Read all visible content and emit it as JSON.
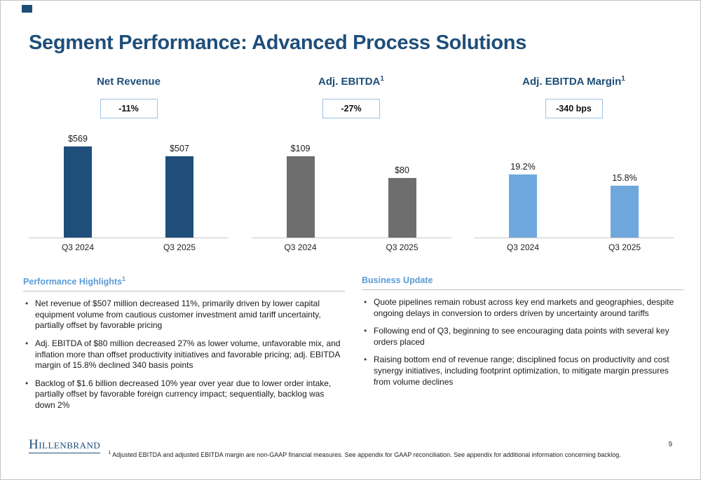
{
  "slide": {
    "title": "Segment Performance: Advanced Process Solutions",
    "page_number": "9",
    "footnote_sup": "1",
    "footnote": "Adjusted EBITDA and adjusted EBITDA margin are non-GAAP financial measures.  See appendix for GAAP reconciliation. See appendix for additional information concerning backlog.",
    "logo_text": "Hillenbrand"
  },
  "colors": {
    "navy": "#1F4E79",
    "gray_bar": "#6E6E6E",
    "light_blue_bar": "#6FA8DC",
    "section_heading_blue": "#5B9BD5",
    "badge_border": "#9DC3E6"
  },
  "chart_data": [
    {
      "type": "bar",
      "title": "Net Revenue",
      "title_sup": "",
      "badge": "-11%",
      "categories": [
        "Q3 2024",
        "Q3 2025"
      ],
      "values": [
        569,
        507
      ],
      "labels": [
        "$569",
        "$507"
      ],
      "color": "#1F4E79",
      "ylim": [
        0,
        640
      ],
      "legend": "none",
      "grid": "off"
    },
    {
      "type": "bar",
      "title": "Adj. EBITDA",
      "title_sup": "1",
      "badge": "-27%",
      "categories": [
        "Q3 2024",
        "Q3 2025"
      ],
      "values": [
        109,
        80
      ],
      "labels": [
        "$109",
        "$80"
      ],
      "color": "#6E6E6E",
      "ylim": [
        0,
        137
      ],
      "legend": "none",
      "grid": "off"
    },
    {
      "type": "bar",
      "title": "Adj. EBITDA Margin",
      "title_sup": "1",
      "badge": "-340 bps",
      "categories": [
        "Q3 2024",
        "Q3 2025"
      ],
      "values": [
        19.2,
        15.8
      ],
      "labels": [
        "19.2%",
        "15.8%"
      ],
      "color": "#6FA8DC",
      "ylim": [
        0,
        31
      ],
      "legend": "none",
      "grid": "off"
    }
  ],
  "highlights": {
    "heading": "Performance Highlights",
    "heading_sup": "1",
    "bullets": [
      "Net revenue of $507 million decreased 11%, primarily driven by lower capital equipment volume from cautious customer investment amid tariff uncertainty, partially offset by favorable pricing",
      "Adj. EBITDA of $80 million decreased 27% as lower volume, unfavorable mix, and inflation more than offset productivity initiatives and favorable pricing; adj. EBITDA margin of 15.8% declined 340 basis points",
      "Backlog of $1.6 billion decreased 10% year over year due to lower order intake, partially offset by favorable foreign currency impact; sequentially, backlog was down 2%"
    ]
  },
  "business": {
    "heading": "Business Update",
    "bullets": [
      "Quote pipelines remain robust across key end markets and geographies, despite ongoing delays in conversion to orders driven by uncertainty around tariffs",
      "Following end of Q3, beginning to see encouraging data points with several key orders placed",
      "Raising bottom end of revenue range; disciplined focus on productivity and cost synergy initiatives, including footprint optimization, to mitigate margin pressures from volume declines"
    ]
  }
}
